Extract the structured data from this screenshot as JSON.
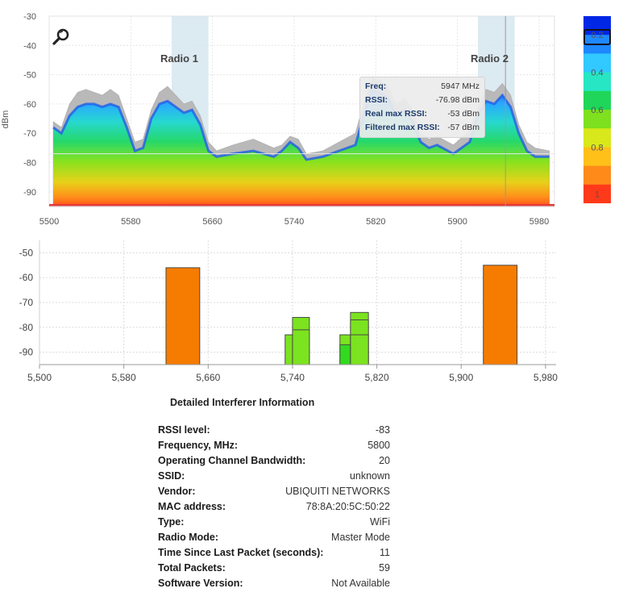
{
  "colors": {
    "bar_orange": "#f57c00",
    "bar_green": "#7be31f",
    "bar_green_dark": "#33d91f",
    "noise_gray": "#b9b9b9",
    "floor_line": "#e53935",
    "radio_band": "#d6e6ee"
  },
  "spectrum": {
    "ylabel": "dBm",
    "y_ticks": [
      "-30",
      "-40",
      "-50",
      "-60",
      "-70",
      "-80",
      "-90"
    ],
    "x_ticks": [
      "5500",
      "5580",
      "5660",
      "5740",
      "5820",
      "5900",
      "5980"
    ],
    "radios": [
      {
        "label": "Radio 1",
        "from": 5620,
        "to": 5656
      },
      {
        "label": "Radio 2",
        "from": 5920,
        "to": 5956
      }
    ],
    "tooltip": {
      "freq_label": "Freq:",
      "freq_value": "5947 MHz",
      "rssi_label": "RSSI:",
      "rssi_value": "-76.98 dBm",
      "realmax_label": "Real max RSSI:",
      "realmax_value": "-53 dBm",
      "filtmax_label": "Filtered max RSSI:",
      "filtmax_value": "-57 dBm"
    },
    "crosshair_freq": 5947,
    "crosshair_rssi": -76.98,
    "zoom_icon": "magnifier-icon"
  },
  "legend": {
    "labels": [
      "0.2",
      "0.4",
      "0.6",
      "0.8",
      "1"
    ],
    "colors": [
      "#0026e6",
      "#1e88ff",
      "#31c9ff",
      "#27e6c4",
      "#1fd65a",
      "#7ee01f",
      "#d8e81a",
      "#ffc01a",
      "#ff8a1a",
      "#ff3a1a"
    ]
  },
  "chart_data": [
    {
      "type": "area",
      "title": "",
      "xlabel": "",
      "ylabel": "dBm",
      "xlim": [
        5500,
        5995
      ],
      "ylim": [
        -95,
        -30
      ],
      "x": [
        5504,
        5512,
        5520,
        5528,
        5536,
        5544,
        5552,
        5560,
        5568,
        5576,
        5584,
        5592,
        5600,
        5608,
        5616,
        5624,
        5632,
        5640,
        5648,
        5656,
        5664,
        5680,
        5700,
        5720,
        5728,
        5736,
        5744,
        5752,
        5768,
        5784,
        5800,
        5808,
        5816,
        5824,
        5832,
        5840,
        5848,
        5856,
        5864,
        5872,
        5880,
        5896,
        5912,
        5920,
        5928,
        5936,
        5944,
        5952,
        5960,
        5968,
        5976,
        5990
      ],
      "series": [
        {
          "name": "Real max RSSI",
          "values": [
            -66,
            -68,
            -60,
            -56,
            -55,
            -56,
            -57,
            -55,
            -57,
            -65,
            -73,
            -72,
            -62,
            -56,
            -54,
            -57,
            -60,
            -59,
            -64,
            -73,
            -76,
            -74,
            -72,
            -75,
            -74,
            -71,
            -72,
            -77,
            -76,
            -73,
            -70,
            -60,
            -51,
            -52,
            -54,
            -60,
            -58,
            -62,
            -70,
            -72,
            -71,
            -74,
            -69,
            -61,
            -55,
            -56,
            -53,
            -57,
            -67,
            -73,
            -75,
            -76
          ]
        },
        {
          "name": "Filtered max RSSI",
          "values": [
            -68,
            -70,
            -64,
            -61,
            -60,
            -60,
            -61,
            -60,
            -61,
            -68,
            -76,
            -75,
            -65,
            -60,
            -59,
            -61,
            -63,
            -62,
            -67,
            -76,
            -78,
            -77,
            -76,
            -78,
            -76,
            -73,
            -75,
            -79,
            -78,
            -76,
            -74,
            -64,
            -55,
            -56,
            -58,
            -64,
            -62,
            -66,
            -73,
            -75,
            -74,
            -77,
            -73,
            -64,
            -59,
            -60,
            -57,
            -61,
            -70,
            -76,
            -78,
            -78
          ]
        }
      ],
      "floor": -95
    },
    {
      "type": "bar",
      "title": "",
      "xlabel": "",
      "ylabel": "",
      "x_ticks": [
        "5,500",
        "5,580",
        "5,660",
        "5,740",
        "5,820",
        "5,900",
        "5,980"
      ],
      "y_ticks": [
        "-50",
        "-60",
        "-70",
        "-80",
        "-90"
      ],
      "xlim": [
        5500,
        5990
      ],
      "ylim": [
        -95,
        -45
      ],
      "bars": [
        {
          "from": 5620,
          "to": 5652,
          "top": -56,
          "color": "orange"
        },
        {
          "from": 5921,
          "to": 5953,
          "top": -55,
          "color": "orange"
        },
        {
          "from": 5733,
          "to": 5740,
          "top": -83,
          "color": "green"
        },
        {
          "from": 5740,
          "to": 5756,
          "top": -76,
          "color": "green"
        },
        {
          "from": 5740,
          "to": 5756,
          "top": -81,
          "color": "green"
        },
        {
          "from": 5785,
          "to": 5800,
          "top": -83,
          "color": "green"
        },
        {
          "from": 5785,
          "to": 5800,
          "top": -87,
          "color": "green-dark"
        },
        {
          "from": 5795,
          "to": 5812,
          "top": -74,
          "color": "green"
        },
        {
          "from": 5795,
          "to": 5812,
          "top": -77,
          "color": "green"
        },
        {
          "from": 5795,
          "to": 5812,
          "top": -83,
          "color": "green"
        }
      ]
    }
  ],
  "details": {
    "title": "Detailed Interferer Information",
    "rows": [
      {
        "label": "RSSI level:",
        "value": "-83"
      },
      {
        "label": "Frequency, MHz:",
        "value": "5800"
      },
      {
        "label": "Operating Channel Bandwidth:",
        "value": "20"
      },
      {
        "label": "SSID:",
        "value": "unknown"
      },
      {
        "label": "Vendor:",
        "value": "UBIQUITI NETWORKS"
      },
      {
        "label": "MAC address:",
        "value": "78:8A:20:5C:50:22"
      },
      {
        "label": "Type:",
        "value": "WiFi"
      },
      {
        "label": "Radio Mode:",
        "value": "Master Mode"
      },
      {
        "label": "Time Since Last Packet (seconds):",
        "value": "11"
      },
      {
        "label": "Total Packets:",
        "value": "59"
      },
      {
        "label": "Software Version:",
        "value": "Not Available"
      }
    ]
  }
}
